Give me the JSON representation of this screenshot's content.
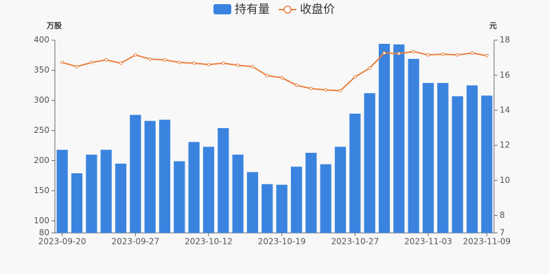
{
  "chart_data": {
    "type": "bar-line",
    "legend": [
      "持有量",
      "收盘价"
    ],
    "ylabel": "万股",
    "y2label": "元",
    "categories": [
      "2023-09-20",
      null,
      null,
      null,
      null,
      "2023-09-27",
      null,
      null,
      null,
      null,
      "2023-10-12",
      null,
      null,
      null,
      null,
      "2023-10-19",
      null,
      null,
      null,
      null,
      "2023-10-27",
      null,
      null,
      null,
      null,
      "2023-11-03",
      null,
      null,
      null,
      "2023-11-09"
    ],
    "series": [
      {
        "name": "持有量",
        "type": "bar",
        "color": "#3a84e0",
        "axis": "y",
        "values": [
          218,
          179,
          210,
          218,
          195,
          276,
          266,
          268,
          199,
          231,
          223,
          254,
          210,
          181,
          161,
          160,
          190,
          213,
          194,
          223,
          278,
          312,
          394,
          393,
          369,
          329,
          329,
          307,
          325,
          308
        ]
      },
      {
        "name": "收盘价",
        "type": "line",
        "color": "#e8803e",
        "axis": "y2",
        "values": [
          16.73,
          16.49,
          16.73,
          16.88,
          16.69,
          17.16,
          16.92,
          16.88,
          16.73,
          16.69,
          16.61,
          16.69,
          16.57,
          16.49,
          15.98,
          15.86,
          15.43,
          15.24,
          15.16,
          15.12,
          15.9,
          16.41,
          17.27,
          17.24,
          17.35,
          17.16,
          17.2,
          17.16,
          17.27,
          17.12
        ]
      }
    ],
    "ylim": [
      80,
      400
    ],
    "yticks": [
      80,
      100,
      150,
      200,
      250,
      300,
      350,
      400
    ],
    "y2lim": [
      7,
      18
    ],
    "y2ticks": [
      7,
      8,
      10,
      12,
      14,
      16,
      18
    ]
  }
}
